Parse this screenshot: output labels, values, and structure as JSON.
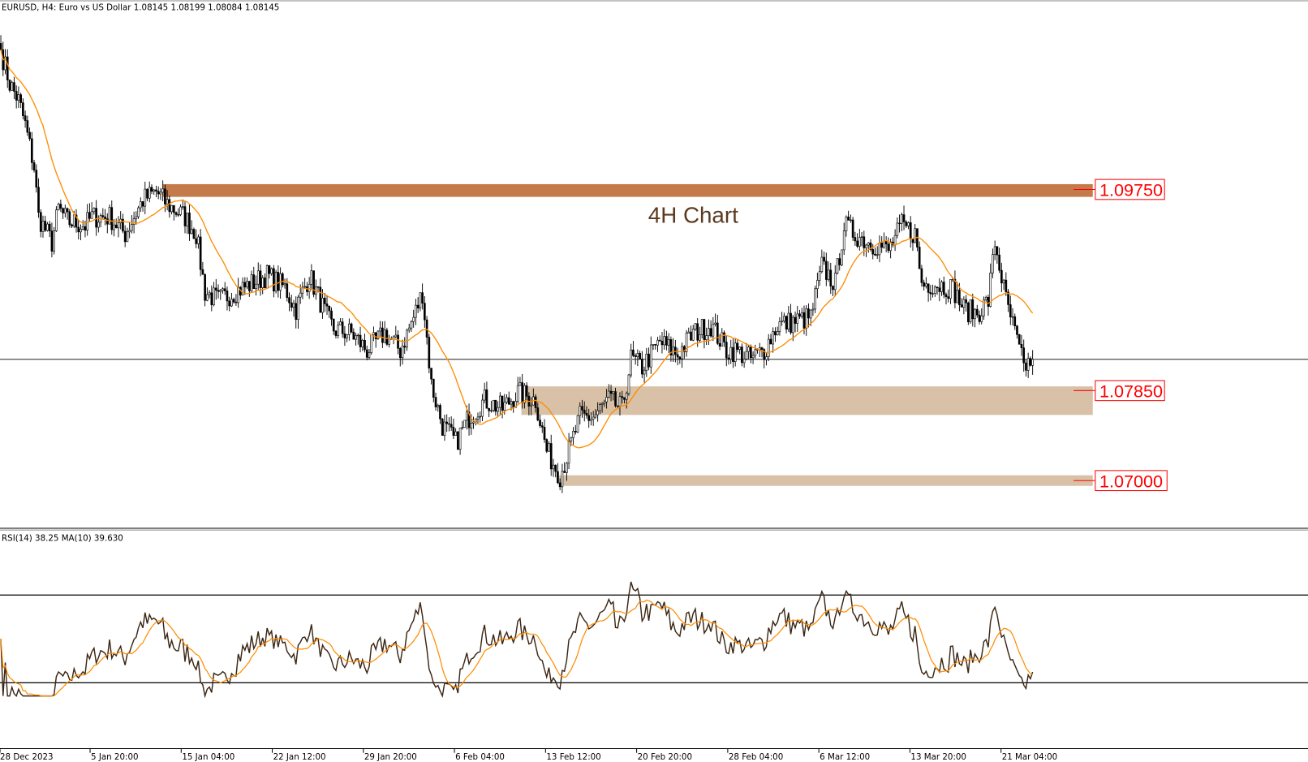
{
  "header": {
    "symbol_info": "EURUSD, H4:  Euro vs US Dollar  1.08145 1.08199 1.08084 1.08145"
  },
  "annotation": {
    "text": "4H Chart"
  },
  "rsi_panel": {
    "label": "RSI(14) 38.25 MA(10) 39.630",
    "levels": [
      70,
      30
    ],
    "range": [
      0,
      100
    ]
  },
  "colors": {
    "resistance_zone": "#c47a4a",
    "support_zone": "#d8c1a7",
    "ma_line": "#ff8c00",
    "rsi_line": "#3b2614",
    "level_label": "#ff0000",
    "candles": "#000000"
  },
  "levels": [
    {
      "label": "1.09750",
      "price": 1.0975,
      "zone": [
        1.0968,
        1.098
      ],
      "type": "resistance"
    },
    {
      "label": "1.07850",
      "price": 1.0785,
      "zone": [
        1.0762,
        1.0789
      ],
      "type": "support"
    },
    {
      "label": "1.07000",
      "price": 1.07,
      "zone": [
        1.0695,
        1.0705
      ],
      "type": "support"
    }
  ],
  "chart_data": {
    "type": "candlestick",
    "title": "",
    "timeframe": "H4",
    "x_tick_labels": [
      "28 Dec 2023",
      "5 Jan 20:00",
      "15 Jan 04:00",
      "22 Jan 12:00",
      "29 Jan 20:00",
      "6 Feb 04:00",
      "13 Feb 12:00",
      "20 Feb 20:00",
      "28 Feb 04:00",
      "6 Mar 12:00",
      "13 Mar 20:00",
      "21 Mar 04:00"
    ],
    "ylim": [
      1.0655,
      1.1126
    ],
    "current_price": 1.08145,
    "moving_average_period": 20,
    "approx_close_path": [
      [
        0,
        1.1107
      ],
      [
        4,
        1.1075
      ],
      [
        8,
        1.1059
      ],
      [
        11,
        1.1036
      ],
      [
        15,
        1.0996
      ],
      [
        17,
        1.0949
      ],
      [
        23,
        1.0925
      ],
      [
        26,
        1.0957
      ],
      [
        30,
        1.0945
      ],
      [
        38,
        1.0941
      ],
      [
        41,
        1.0949
      ],
      [
        49,
        1.0949
      ],
      [
        56,
        1.0933
      ],
      [
        64,
        1.0965
      ],
      [
        70,
        1.0973
      ],
      [
        75,
        1.0961
      ],
      [
        83,
        1.0949
      ],
      [
        88,
        1.0933
      ],
      [
        92,
        1.0878
      ],
      [
        98,
        1.087
      ],
      [
        105,
        1.0878
      ],
      [
        113,
        1.0886
      ],
      [
        120,
        1.0894
      ],
      [
        128,
        1.0882
      ],
      [
        133,
        1.0862
      ],
      [
        139,
        1.0894
      ],
      [
        147,
        1.0854
      ],
      [
        150,
        1.0843
      ],
      [
        158,
        1.0839
      ],
      [
        165,
        1.0823
      ],
      [
        173,
        1.0839
      ],
      [
        180,
        1.0823
      ],
      [
        186,
        1.0854
      ],
      [
        190,
        1.0878
      ],
      [
        194,
        1.0791
      ],
      [
        199,
        1.0752
      ],
      [
        205,
        1.0736
      ],
      [
        211,
        1.076
      ],
      [
        218,
        1.0776
      ],
      [
        226,
        1.0768
      ],
      [
        233,
        1.0783
      ],
      [
        241,
        1.0776
      ],
      [
        246,
        1.0728
      ],
      [
        252,
        1.0705
      ],
      [
        256,
        1.0728
      ],
      [
        261,
        1.076
      ],
      [
        267,
        1.076
      ],
      [
        274,
        1.0776
      ],
      [
        280,
        1.0768
      ],
      [
        284,
        1.0815
      ],
      [
        289,
        1.0807
      ],
      [
        297,
        1.0831
      ],
      [
        305,
        1.0819
      ],
      [
        312,
        1.0839
      ],
      [
        320,
        1.0847
      ],
      [
        327,
        1.0823
      ],
      [
        331,
        1.0823
      ],
      [
        338,
        1.0815
      ],
      [
        344,
        1.0823
      ],
      [
        350,
        1.0847
      ],
      [
        357,
        1.085
      ],
      [
        365,
        1.0854
      ],
      [
        370,
        1.0902
      ],
      [
        376,
        1.0886
      ],
      [
        380,
        1.0941
      ],
      [
        385,
        1.0933
      ],
      [
        391,
        1.0925
      ],
      [
        397,
        1.0921
      ],
      [
        400,
        1.0917
      ],
      [
        406,
        1.0941
      ],
      [
        412,
        1.0933
      ],
      [
        415,
        1.0886
      ],
      [
        421,
        1.0886
      ],
      [
        429,
        1.0882
      ],
      [
        434,
        1.0862
      ],
      [
        440,
        1.0858
      ],
      [
        445,
        1.087
      ],
      [
        448,
        1.0925
      ],
      [
        453,
        1.087
      ],
      [
        457,
        1.0839
      ],
      [
        461,
        1.0807
      ],
      [
        465,
        1.08145
      ]
    ]
  }
}
